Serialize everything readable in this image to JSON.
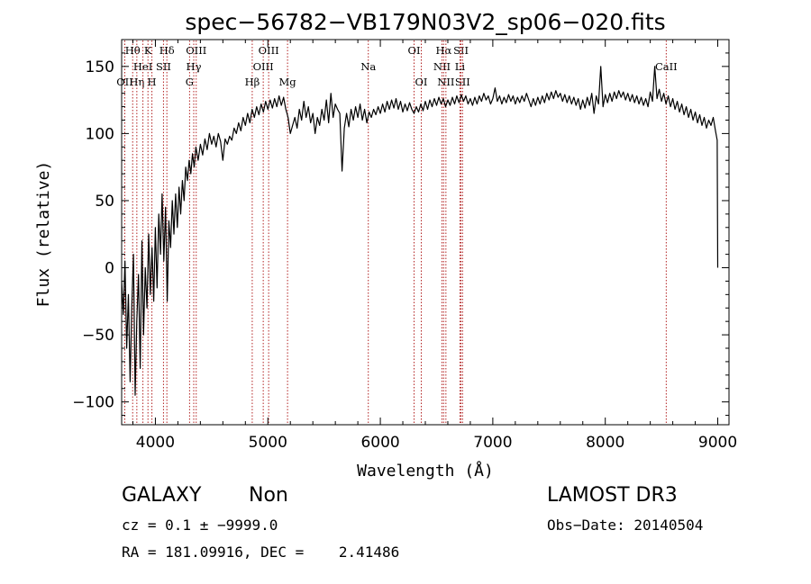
{
  "chart_data": {
    "type": "line",
    "title": "spec−56782−VB179N03V2_sp06−020.fits",
    "xlabel": "Wavelength (Å)",
    "ylabel": "Flux (relative)",
    "xlim": [
      3700,
      9100
    ],
    "ylim": [
      -117,
      170
    ],
    "x_ticks": [
      4000,
      5000,
      6000,
      7000,
      8000,
      9000
    ],
    "y_ticks": [
      -100,
      -50,
      0,
      50,
      100,
      150
    ],
    "y_tick_labels": [
      "−100",
      "−50",
      "0",
      "50",
      "100",
      "150"
    ],
    "series": [
      {
        "points": [
          [
            3700,
            -10
          ],
          [
            3715,
            -35
          ],
          [
            3730,
            5
          ],
          [
            3745,
            -60
          ],
          [
            3760,
            -20
          ],
          [
            3775,
            -85
          ],
          [
            3790,
            -30
          ],
          [
            3805,
            10
          ],
          [
            3820,
            -95
          ],
          [
            3835,
            -40
          ],
          [
            3850,
            -5
          ],
          [
            3865,
            -75
          ],
          [
            3880,
            20
          ],
          [
            3895,
            -50
          ],
          [
            3910,
            0
          ],
          [
            3925,
            -30
          ],
          [
            3940,
            25
          ],
          [
            3955,
            -20
          ],
          [
            3970,
            15
          ],
          [
            3985,
            -25
          ],
          [
            4000,
            30
          ],
          [
            4015,
            -15
          ],
          [
            4030,
            40
          ],
          [
            4045,
            10
          ],
          [
            4060,
            55
          ],
          [
            4075,
            5
          ],
          [
            4090,
            45
          ],
          [
            4105,
            -25
          ],
          [
            4120,
            35
          ],
          [
            4135,
            15
          ],
          [
            4150,
            50
          ],
          [
            4165,
            25
          ],
          [
            4180,
            55
          ],
          [
            4195,
            30
          ],
          [
            4210,
            60
          ],
          [
            4225,
            40
          ],
          [
            4240,
            65
          ],
          [
            4255,
            50
          ],
          [
            4270,
            75
          ],
          [
            4285,
            65
          ],
          [
            4300,
            80
          ],
          [
            4315,
            70
          ],
          [
            4330,
            85
          ],
          [
            4345,
            75
          ],
          [
            4360,
            90
          ],
          [
            4380,
            80
          ],
          [
            4400,
            92
          ],
          [
            4420,
            84
          ],
          [
            4440,
            96
          ],
          [
            4460,
            88
          ],
          [
            4480,
            100
          ],
          [
            4500,
            92
          ],
          [
            4520,
            98
          ],
          [
            4540,
            90
          ],
          [
            4560,
            100
          ],
          [
            4580,
            94
          ],
          [
            4600,
            80
          ],
          [
            4620,
            96
          ],
          [
            4640,
            92
          ],
          [
            4660,
            98
          ],
          [
            4680,
            95
          ],
          [
            4700,
            104
          ],
          [
            4720,
            100
          ],
          [
            4740,
            108
          ],
          [
            4760,
            102
          ],
          [
            4780,
            112
          ],
          [
            4800,
            106
          ],
          [
            4820,
            115
          ],
          [
            4840,
            108
          ],
          [
            4860,
            118
          ],
          [
            4880,
            112
          ],
          [
            4900,
            120
          ],
          [
            4920,
            114
          ],
          [
            4940,
            122
          ],
          [
            4960,
            116
          ],
          [
            4980,
            124
          ],
          [
            5000,
            118
          ],
          [
            5020,
            125
          ],
          [
            5040,
            119
          ],
          [
            5060,
            126
          ],
          [
            5080,
            120
          ],
          [
            5100,
            128
          ],
          [
            5120,
            121
          ],
          [
            5140,
            127
          ],
          [
            5160,
            118
          ],
          [
            5180,
            112
          ],
          [
            5200,
            100
          ],
          [
            5220,
            106
          ],
          [
            5240,
            112
          ],
          [
            5260,
            104
          ],
          [
            5280,
            118
          ],
          [
            5300,
            110
          ],
          [
            5320,
            124
          ],
          [
            5340,
            112
          ],
          [
            5360,
            120
          ],
          [
            5380,
            108
          ],
          [
            5400,
            115
          ],
          [
            5420,
            100
          ],
          [
            5440,
            112
          ],
          [
            5460,
            106
          ],
          [
            5480,
            118
          ],
          [
            5500,
            110
          ],
          [
            5520,
            125
          ],
          [
            5540,
            108
          ],
          [
            5560,
            130
          ],
          [
            5580,
            112
          ],
          [
            5600,
            122
          ],
          [
            5620,
            118
          ],
          [
            5640,
            115
          ],
          [
            5660,
            72
          ],
          [
            5680,
            104
          ],
          [
            5700,
            115
          ],
          [
            5720,
            105
          ],
          [
            5740,
            118
          ],
          [
            5760,
            110
          ],
          [
            5780,
            120
          ],
          [
            5800,
            112
          ],
          [
            5820,
            122
          ],
          [
            5840,
            110
          ],
          [
            5860,
            118
          ],
          [
            5880,
            108
          ],
          [
            5900,
            116
          ],
          [
            5920,
            112
          ],
          [
            5940,
            118
          ],
          [
            5960,
            114
          ],
          [
            5980,
            120
          ],
          [
            6000,
            115
          ],
          [
            6020,
            122
          ],
          [
            6040,
            116
          ],
          [
            6060,
            124
          ],
          [
            6080,
            118
          ],
          [
            6100,
            125
          ],
          [
            6120,
            119
          ],
          [
            6140,
            126
          ],
          [
            6160,
            118
          ],
          [
            6180,
            124
          ],
          [
            6200,
            116
          ],
          [
            6220,
            122
          ],
          [
            6240,
            117
          ],
          [
            6260,
            123
          ],
          [
            6280,
            118
          ],
          [
            6300,
            115
          ],
          [
            6320,
            120
          ],
          [
            6340,
            116
          ],
          [
            6360,
            122
          ],
          [
            6380,
            117
          ],
          [
            6400,
            124
          ],
          [
            6420,
            118
          ],
          [
            6440,
            125
          ],
          [
            6460,
            120
          ],
          [
            6480,
            126
          ],
          [
            6500,
            121
          ],
          [
            6520,
            127
          ],
          [
            6540,
            122
          ],
          [
            6560,
            126
          ],
          [
            6580,
            120
          ],
          [
            6600,
            125
          ],
          [
            6620,
            121
          ],
          [
            6640,
            127
          ],
          [
            6660,
            122
          ],
          [
            6680,
            128
          ],
          [
            6700,
            123
          ],
          [
            6720,
            129
          ],
          [
            6740,
            124
          ],
          [
            6760,
            128
          ],
          [
            6780,
            122
          ],
          [
            6800,
            126
          ],
          [
            6820,
            121
          ],
          [
            6840,
            127
          ],
          [
            6860,
            122
          ],
          [
            6880,
            128
          ],
          [
            6900,
            124
          ],
          [
            6920,
            130
          ],
          [
            6940,
            125
          ],
          [
            6960,
            128
          ],
          [
            6980,
            122
          ],
          [
            7000,
            126
          ],
          [
            7020,
            134
          ],
          [
            7040,
            124
          ],
          [
            7060,
            128
          ],
          [
            7080,
            122
          ],
          [
            7100,
            127
          ],
          [
            7120,
            123
          ],
          [
            7140,
            129
          ],
          [
            7160,
            124
          ],
          [
            7180,
            128
          ],
          [
            7200,
            122
          ],
          [
            7220,
            127
          ],
          [
            7240,
            123
          ],
          [
            7260,
            128
          ],
          [
            7280,
            124
          ],
          [
            7300,
            130
          ],
          [
            7320,
            125
          ],
          [
            7340,
            120
          ],
          [
            7360,
            126
          ],
          [
            7380,
            121
          ],
          [
            7400,
            127
          ],
          [
            7420,
            122
          ],
          [
            7440,
            128
          ],
          [
            7460,
            123
          ],
          [
            7480,
            130
          ],
          [
            7500,
            125
          ],
          [
            7520,
            131
          ],
          [
            7540,
            126
          ],
          [
            7560,
            132
          ],
          [
            7580,
            127
          ],
          [
            7600,
            130
          ],
          [
            7620,
            124
          ],
          [
            7640,
            129
          ],
          [
            7660,
            123
          ],
          [
            7680,
            128
          ],
          [
            7700,
            122
          ],
          [
            7720,
            127
          ],
          [
            7740,
            121
          ],
          [
            7760,
            126
          ],
          [
            7780,
            118
          ],
          [
            7800,
            125
          ],
          [
            7820,
            119
          ],
          [
            7840,
            127
          ],
          [
            7860,
            121
          ],
          [
            7880,
            130
          ],
          [
            7900,
            115
          ],
          [
            7920,
            128
          ],
          [
            7940,
            122
          ],
          [
            7960,
            150
          ],
          [
            7980,
            120
          ],
          [
            8000,
            129
          ],
          [
            8020,
            123
          ],
          [
            8040,
            130
          ],
          [
            8060,
            124
          ],
          [
            8080,
            131
          ],
          [
            8100,
            126
          ],
          [
            8120,
            132
          ],
          [
            8140,
            127
          ],
          [
            8160,
            131
          ],
          [
            8180,
            125
          ],
          [
            8200,
            130
          ],
          [
            8220,
            124
          ],
          [
            8240,
            129
          ],
          [
            8260,
            123
          ],
          [
            8280,
            128
          ],
          [
            8300,
            122
          ],
          [
            8320,
            127
          ],
          [
            8340,
            121
          ],
          [
            8360,
            126
          ],
          [
            8380,
            120
          ],
          [
            8400,
            131
          ],
          [
            8420,
            124
          ],
          [
            8440,
            150
          ],
          [
            8460,
            126
          ],
          [
            8480,
            133
          ],
          [
            8500,
            124
          ],
          [
            8520,
            130
          ],
          [
            8540,
            122
          ],
          [
            8560,
            128
          ],
          [
            8580,
            120
          ],
          [
            8600,
            126
          ],
          [
            8620,
            118
          ],
          [
            8640,
            124
          ],
          [
            8660,
            116
          ],
          [
            8680,
            122
          ],
          [
            8700,
            114
          ],
          [
            8720,
            120
          ],
          [
            8740,
            112
          ],
          [
            8760,
            118
          ],
          [
            8780,
            110
          ],
          [
            8800,
            116
          ],
          [
            8820,
            108
          ],
          [
            8840,
            114
          ],
          [
            8860,
            106
          ],
          [
            8880,
            112
          ],
          [
            8900,
            104
          ],
          [
            8920,
            110
          ],
          [
            8940,
            106
          ],
          [
            8960,
            112
          ],
          [
            8980,
            102
          ],
          [
            8995,
            95
          ],
          [
            9000,
            0
          ]
        ]
      }
    ],
    "lines": [
      {
        "x": 3728,
        "label": "OII",
        "row": 2
      },
      {
        "x": 3934,
        "label": "K",
        "row": 0
      },
      {
        "x": 3969,
        "label": "H",
        "row": 2
      },
      {
        "x": 4102,
        "label": "Hδ",
        "row": 0
      },
      {
        "x": 4072,
        "label": "SII",
        "row": 1
      },
      {
        "x": 4304,
        "label": "G",
        "row": 2
      },
      {
        "x": 4341,
        "label": "Hγ",
        "row": 1
      },
      {
        "x": 4363,
        "label": "OIII",
        "row": 0
      },
      {
        "x": 4861,
        "label": "Hβ",
        "row": 2
      },
      {
        "x": 4959,
        "label": "OIII",
        "row": 1
      },
      {
        "x": 5007,
        "label": "OIII",
        "row": 0
      },
      {
        "x": 5175,
        "label": "Mg",
        "row": 2
      },
      {
        "x": 5893,
        "label": "Na",
        "row": 1
      },
      {
        "x": 6300,
        "label": "OI",
        "row": 0
      },
      {
        "x": 6364,
        "label": "OI",
        "row": 2
      },
      {
        "x": 6548,
        "label": "NII",
        "row": 1
      },
      {
        "x": 6563,
        "label": "Hα",
        "row": 0
      },
      {
        "x": 6583,
        "label": "NII",
        "row": 2
      },
      {
        "x": 6717,
        "label": "SII",
        "row": 0
      },
      {
        "x": 6731,
        "label": "SII",
        "row": 2
      },
      {
        "x": 6708,
        "label": "Li",
        "row": 1
      },
      {
        "x": 3798,
        "label": "Hθ",
        "row": 0
      },
      {
        "x": 3835,
        "label": "Hη",
        "row": 2
      },
      {
        "x": 3889,
        "label": "HeI",
        "row": 1
      },
      {
        "x": 8542,
        "label": "CaII",
        "row": 1
      }
    ]
  },
  "info": {
    "class": "GALAXY",
    "subclass": "Non",
    "survey": "LAMOST DR3",
    "cz": "cz = 0.1 ± −9999.0",
    "obsdate": "Obs−Date: 20140504",
    "radec": "RA = 181.09916, DEC =    2.41486"
  }
}
